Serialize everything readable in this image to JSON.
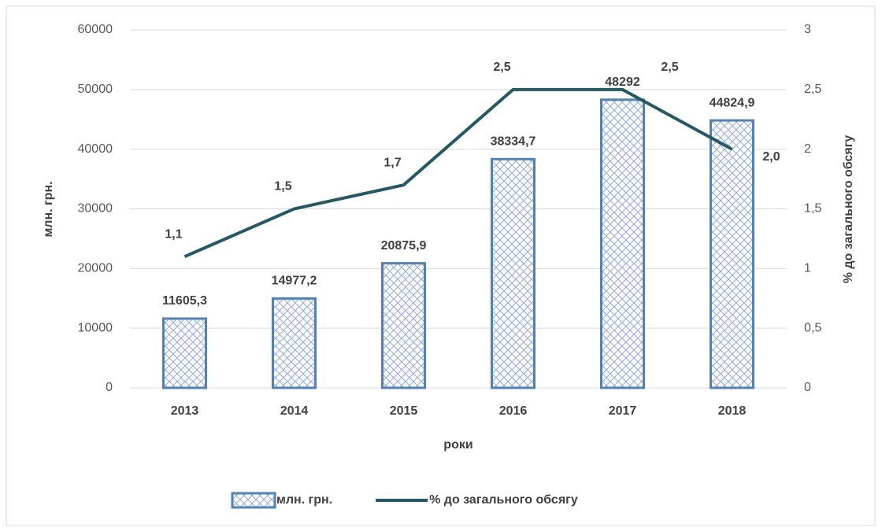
{
  "chart_data": {
    "type": "combo",
    "categories": [
      "2013",
      "2014",
      "2015",
      "2016",
      "2017",
      "2018"
    ],
    "series": [
      {
        "name": "млн. грн.",
        "type": "bar",
        "color": "#4f81bd",
        "values": [
          11605.3,
          14977.2,
          20875.9,
          38334.7,
          48292,
          44824.9
        ],
        "value_labels": [
          "11605,3",
          "14977,2",
          "20875,9",
          "38334,7",
          "48292",
          "44824,9"
        ]
      },
      {
        "name": "% до загального обсягу",
        "type": "line",
        "axis": "y2",
        "color": "#215a63",
        "values": [
          1.1,
          1.5,
          1.7,
          2.5,
          2.5,
          2.0
        ],
        "value_labels": [
          "1,1",
          "1,5",
          "1,7",
          "2,5",
          "2,5",
          "2,0"
        ]
      }
    ],
    "ylabel": "млн. грн.",
    "y2label": "% до загального обсягу",
    "xlabel": "роки",
    "ylim": [
      0,
      60000
    ],
    "yticks": [
      0,
      10000,
      20000,
      30000,
      40000,
      50000,
      60000
    ],
    "y2lim": [
      0,
      3
    ],
    "y2ticks": [
      0,
      {
        "value": 0.5,
        "label": "0,5"
      },
      1,
      {
        "value": 1.5,
        "label": "1,5"
      },
      2,
      {
        "value": 2.5,
        "label": "2,5"
      },
      3
    ],
    "grid": true,
    "legend": "bottom"
  }
}
